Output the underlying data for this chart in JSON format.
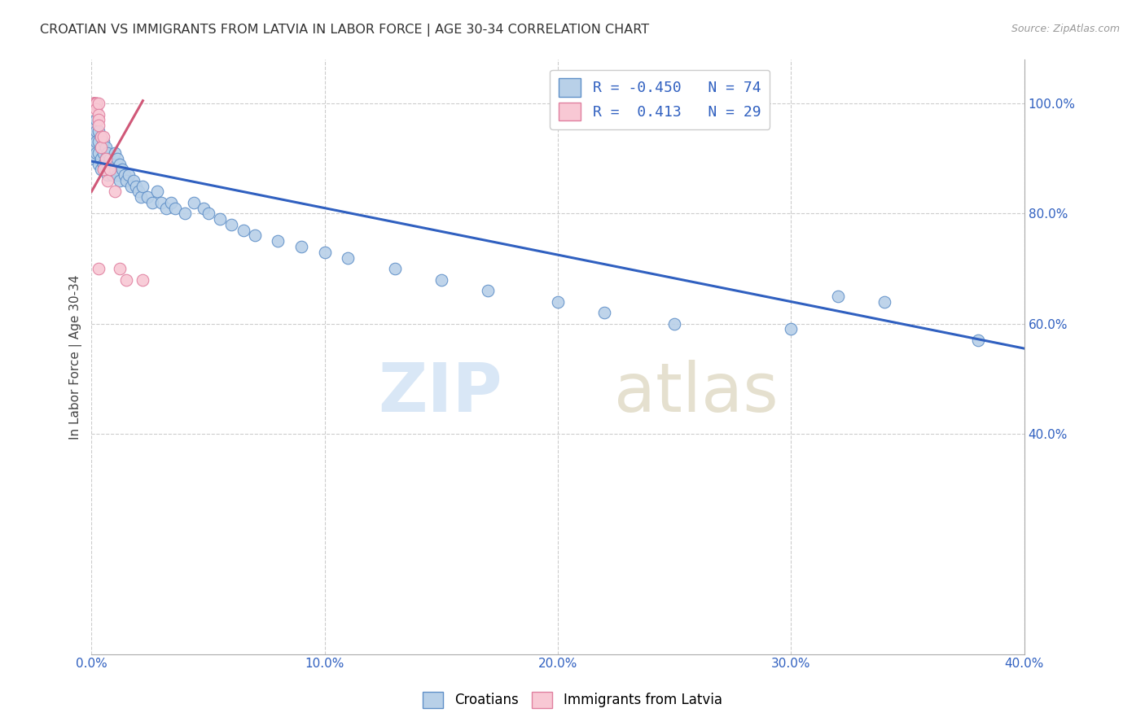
{
  "title": "CROATIAN VS IMMIGRANTS FROM LATVIA IN LABOR FORCE | AGE 30-34 CORRELATION CHART",
  "source": "Source: ZipAtlas.com",
  "ylabel": "In Labor Force | Age 30-34",
  "legend_labels": [
    "Croatians",
    "Immigrants from Latvia"
  ],
  "r_croatian": -0.45,
  "n_croatian": 74,
  "r_latvia": 0.413,
  "n_latvia": 29,
  "blue_color": "#b8d0e8",
  "blue_edge_color": "#6090c8",
  "blue_line_color": "#3060c0",
  "pink_color": "#f8c8d4",
  "pink_edge_color": "#e080a0",
  "pink_line_color": "#d05878",
  "xmin": 0.0,
  "xmax": 0.4,
  "ymin": 0.0,
  "ymax": 1.08,
  "blue_line_x0": 0.0,
  "blue_line_y0": 0.895,
  "blue_line_x1": 0.4,
  "blue_line_y1": 0.555,
  "pink_line_x0": 0.0,
  "pink_line_y0": 0.84,
  "pink_line_x1": 0.022,
  "pink_line_y1": 1.005,
  "blue_scatter_x": [
    0.001,
    0.001,
    0.001,
    0.001,
    0.002,
    0.002,
    0.002,
    0.002,
    0.003,
    0.003,
    0.003,
    0.003,
    0.004,
    0.004,
    0.004,
    0.004,
    0.005,
    0.005,
    0.005,
    0.006,
    0.006,
    0.006,
    0.007,
    0.007,
    0.007,
    0.008,
    0.008,
    0.009,
    0.009,
    0.01,
    0.01,
    0.011,
    0.011,
    0.012,
    0.012,
    0.013,
    0.014,
    0.015,
    0.016,
    0.017,
    0.018,
    0.019,
    0.02,
    0.021,
    0.022,
    0.024,
    0.026,
    0.028,
    0.03,
    0.032,
    0.034,
    0.036,
    0.04,
    0.044,
    0.048,
    0.05,
    0.055,
    0.06,
    0.065,
    0.07,
    0.08,
    0.09,
    0.1,
    0.11,
    0.13,
    0.15,
    0.17,
    0.2,
    0.22,
    0.25,
    0.3,
    0.32,
    0.34,
    0.38
  ],
  "blue_scatter_y": [
    0.96,
    0.94,
    0.92,
    0.9,
    0.97,
    0.95,
    0.93,
    0.91,
    0.95,
    0.93,
    0.91,
    0.89,
    0.94,
    0.92,
    0.9,
    0.88,
    0.93,
    0.91,
    0.89,
    0.92,
    0.9,
    0.88,
    0.91,
    0.89,
    0.87,
    0.9,
    0.88,
    0.89,
    0.87,
    0.91,
    0.88,
    0.9,
    0.87,
    0.89,
    0.86,
    0.88,
    0.87,
    0.86,
    0.87,
    0.85,
    0.86,
    0.85,
    0.84,
    0.83,
    0.85,
    0.83,
    0.82,
    0.84,
    0.82,
    0.81,
    0.82,
    0.81,
    0.8,
    0.82,
    0.81,
    0.8,
    0.79,
    0.78,
    0.77,
    0.76,
    0.75,
    0.74,
    0.73,
    0.72,
    0.7,
    0.68,
    0.66,
    0.64,
    0.62,
    0.6,
    0.59,
    0.65,
    0.64,
    0.57
  ],
  "pink_scatter_x": [
    0.001,
    0.001,
    0.001,
    0.001,
    0.001,
    0.001,
    0.001,
    0.001,
    0.001,
    0.002,
    0.002,
    0.002,
    0.002,
    0.002,
    0.003,
    0.003,
    0.003,
    0.003,
    0.004,
    0.004,
    0.005,
    0.005,
    0.006,
    0.007,
    0.008,
    0.01,
    0.012,
    0.015,
    0.022
  ],
  "pink_scatter_y": [
    1.0,
    1.0,
    1.0,
    1.0,
    1.0,
    1.0,
    1.0,
    1.0,
    1.0,
    1.0,
    1.0,
    1.0,
    1.0,
    0.99,
    1.0,
    0.98,
    0.97,
    0.96,
    0.94,
    0.92,
    0.94,
    0.88,
    0.9,
    0.86,
    0.88,
    0.84,
    0.7,
    0.68,
    0.68
  ],
  "pink_outlier_x": [
    0.003
  ],
  "pink_outlier_y": [
    0.7
  ],
  "xtick_labels": [
    "0.0%",
    "10.0%",
    "20.0%",
    "30.0%",
    "40.0%"
  ],
  "xtick_vals": [
    0.0,
    0.1,
    0.2,
    0.3,
    0.4
  ],
  "ytick_labels": [
    "40.0%",
    "60.0%",
    "80.0%",
    "100.0%"
  ],
  "ytick_vals": [
    0.4,
    0.6,
    0.8,
    1.0
  ],
  "grid_color": "#cccccc",
  "bg_color": "#ffffff"
}
